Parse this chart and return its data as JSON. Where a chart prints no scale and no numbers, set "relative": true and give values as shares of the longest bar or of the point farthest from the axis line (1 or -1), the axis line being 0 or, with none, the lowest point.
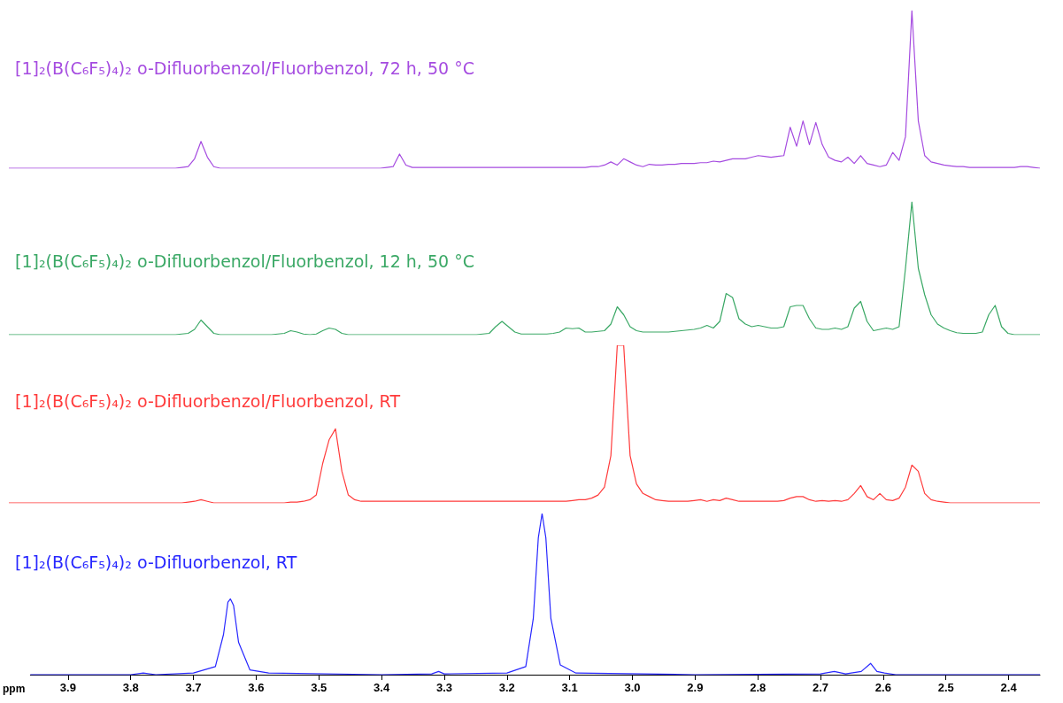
{
  "chart_data": [
    {
      "type": "line",
      "title": "[1]₂(B(C₆F₅)₄)₂ o-Difluorbenzol/Fluorbenzol, 72 h, 50 °C",
      "relative": true,
      "tick_labels": false,
      "categories": [
        null,
        null,
        null,
        null,
        null,
        null,
        null,
        null,
        null,
        null,
        null,
        null,
        null,
        null,
        null,
        null,
        null,
        null,
        null,
        null,
        null,
        null,
        null,
        null,
        null,
        null,
        null,
        null,
        null,
        null,
        null,
        null,
        null,
        null,
        null,
        null,
        null,
        null,
        null,
        null,
        null,
        null,
        null,
        null,
        null,
        null,
        null,
        null,
        null,
        null,
        null,
        null,
        null,
        null,
        null,
        null,
        null,
        null,
        null,
        null,
        null,
        null,
        null,
        null,
        null,
        null,
        null,
        null,
        null,
        null,
        null,
        null,
        null,
        null,
        null,
        null,
        null,
        null,
        null,
        null,
        null,
        null,
        null,
        null,
        null,
        null,
        null,
        null,
        null,
        null,
        null,
        null,
        null,
        null,
        null,
        null,
        null,
        null,
        null,
        null,
        null,
        null,
        null,
        null,
        null,
        null,
        null,
        null,
        null,
        null,
        null,
        null,
        null,
        null,
        null,
        null,
        null,
        null,
        null,
        null,
        null,
        null,
        null,
        null,
        null,
        null,
        null,
        null,
        null,
        null,
        null,
        null,
        null,
        null,
        null,
        null,
        null,
        null,
        null,
        null,
        null,
        null,
        null,
        null,
        null,
        null,
        null,
        null,
        null,
        null,
        null,
        null,
        null,
        null,
        null,
        null,
        null,
        null,
        null,
        null,
        null,
        null
      ],
      "series": [
        {
          "color": "#a54be0",
          "values": [
            0,
            0,
            0,
            0,
            0,
            0,
            0,
            0,
            0,
            0,
            0,
            0,
            0,
            0,
            0,
            0,
            0,
            0,
            0,
            0,
            0,
            0,
            0,
            0,
            0,
            0,
            0,
            0.005,
            0.01,
            0.06,
            0.17,
            0.07,
            0.01,
            0,
            0,
            0,
            0,
            0,
            0,
            0,
            0,
            0,
            0,
            0,
            0,
            0,
            0,
            0,
            0,
            0,
            0,
            0,
            0,
            0,
            0,
            0,
            0,
            0,
            0,
            0.005,
            0.01,
            0.09,
            0.02,
            0.005,
            0.005,
            0.005,
            0.005,
            0.005,
            0.005,
            0.005,
            0.005,
            0.005,
            0.005,
            0.005,
            0.005,
            0.005,
            0.005,
            0.005,
            0.005,
            0.005,
            0.005,
            0.005,
            0.005,
            0.005,
            0.005,
            0.005,
            0.005,
            0.005,
            0.005,
            0.005,
            0.005,
            0.01,
            0.01,
            0.02,
            0.04,
            0.02,
            0.06,
            0.04,
            0.02,
            0.01,
            0.025,
            0.02,
            0.02,
            0.025,
            0.025,
            0.03,
            0.03,
            0.03,
            0.035,
            0.035,
            0.045,
            0.04,
            0.05,
            0.06,
            0.06,
            0.06,
            0.07,
            0.08,
            0.075,
            0.07,
            0.075,
            0.08,
            0.26,
            0.14,
            0.3,
            0.15,
            0.29,
            0.15,
            0.07,
            0.05,
            0.04,
            0.07,
            0.03,
            0.08,
            0.03,
            0.02,
            0.01,
            0.02,
            0.1,
            0.05,
            0.2,
            1,
            0.3,
            0.08,
            0.04,
            0.03,
            0.02,
            0.015,
            0.01,
            0.01,
            0.005,
            0.005,
            0.005,
            0.005,
            0.005,
            0.005,
            0.005,
            0.005,
            0.01,
            0.01,
            0.005,
            0
          ]
        }
      ]
    },
    {
      "type": "line",
      "title": "[1]₂(B(C₆F₅)₄)₂ o-Difluorbenzol/Fluorbenzol, 12 h, 50 °C",
      "relative": true,
      "tick_labels": false,
      "categories": [
        null,
        null,
        null,
        null,
        null,
        null,
        null,
        null,
        null,
        null,
        null,
        null,
        null,
        null,
        null,
        null,
        null,
        null,
        null,
        null,
        null,
        null,
        null,
        null,
        null,
        null,
        null,
        null,
        null,
        null,
        null,
        null,
        null,
        null,
        null,
        null,
        null,
        null,
        null,
        null,
        null,
        null,
        null,
        null,
        null,
        null,
        null,
        null,
        null,
        null,
        null,
        null,
        null,
        null,
        null,
        null,
        null,
        null,
        null,
        null,
        null,
        null,
        null,
        null,
        null,
        null,
        null,
        null,
        null,
        null,
        null,
        null,
        null,
        null,
        null,
        null,
        null,
        null,
        null,
        null,
        null,
        null,
        null,
        null,
        null,
        null,
        null,
        null,
        null,
        null,
        null,
        null,
        null,
        null,
        null,
        null,
        null,
        null,
        null,
        null,
        null,
        null,
        null,
        null,
        null,
        null,
        null,
        null,
        null,
        null,
        null,
        null,
        null,
        null,
        null,
        null,
        null,
        null,
        null,
        null,
        null,
        null,
        null,
        null,
        null,
        null,
        null,
        null,
        null,
        null,
        null,
        null,
        null,
        null,
        null,
        null,
        null,
        null,
        null,
        null,
        null,
        null,
        null,
        null,
        null,
        null,
        null,
        null,
        null,
        null,
        null,
        null,
        null,
        null,
        null,
        null,
        null,
        null,
        null,
        null,
        null,
        null
      ],
      "series": [
        {
          "color": "#3aa865",
          "values": [
            0,
            0,
            0,
            0,
            0,
            0,
            0,
            0,
            0,
            0,
            0,
            0,
            0,
            0,
            0,
            0,
            0,
            0,
            0,
            0,
            0,
            0,
            0,
            0,
            0,
            0,
            0,
            0.005,
            0.01,
            0.04,
            0.11,
            0.06,
            0.01,
            0,
            0,
            0,
            0,
            0,
            0,
            0,
            0,
            0,
            0.005,
            0.01,
            0.03,
            0.02,
            0.005,
            0,
            0.005,
            0.03,
            0.05,
            0.04,
            0.01,
            0,
            0,
            0,
            0,
            0,
            0,
            0,
            0,
            0,
            0,
            0,
            0,
            0,
            0,
            0,
            0,
            0,
            0,
            0,
            0,
            0,
            0.005,
            0.01,
            0.06,
            0.1,
            0.06,
            0.02,
            0.005,
            0.005,
            0.005,
            0.005,
            0.005,
            0.01,
            0.02,
            0.05,
            0.045,
            0.05,
            0.02,
            0.02,
            0.025,
            0.03,
            0.08,
            0.21,
            0.15,
            0.06,
            0.03,
            0.02,
            0.02,
            0.02,
            0.02,
            0.02,
            0.025,
            0.03,
            0.035,
            0.04,
            0.05,
            0.07,
            0.05,
            0.1,
            0.31,
            0.28,
            0.12,
            0.08,
            0.06,
            0.07,
            0.06,
            0.05,
            0.05,
            0.06,
            0.21,
            0.22,
            0.22,
            0.12,
            0.05,
            0.04,
            0.04,
            0.05,
            0.04,
            0.06,
            0.2,
            0.25,
            0.1,
            0.03,
            0.04,
            0.05,
            0.04,
            0.06,
            0.5,
            1,
            0.5,
            0.3,
            0.15,
            0.08,
            0.05,
            0.03,
            0.015,
            0.01,
            0.01,
            0.01,
            0.02,
            0.15,
            0.22,
            0.06,
            0.01,
            0,
            0,
            0,
            0,
            0
          ]
        }
      ]
    },
    {
      "type": "line",
      "title": "[1]₂(B(C₆F₅)₄)₂ o-Difluorbenzol/Fluorbenzol, RT",
      "relative": true,
      "tick_labels": false,
      "categories": [
        null,
        null,
        null,
        null,
        null,
        null,
        null,
        null,
        null,
        null,
        null,
        null,
        null,
        null,
        null,
        null,
        null,
        null,
        null,
        null,
        null,
        null,
        null,
        null,
        null,
        null,
        null,
        null,
        null,
        null,
        null,
        null,
        null,
        null,
        null,
        null,
        null,
        null,
        null,
        null,
        null,
        null,
        null,
        null,
        null,
        null,
        null,
        null,
        null,
        null,
        null,
        null,
        null,
        null,
        null,
        null,
        null,
        null,
        null,
        null,
        null,
        null,
        null,
        null,
        null,
        null,
        null,
        null,
        null,
        null,
        null,
        null,
        null,
        null,
        null,
        null,
        null,
        null,
        null,
        null,
        null,
        null,
        null,
        null,
        null,
        null,
        null,
        null,
        null,
        null,
        null,
        null,
        null,
        null,
        null,
        null,
        null,
        null,
        null,
        null,
        null,
        null,
        null,
        null,
        null,
        null,
        null,
        null,
        null,
        null,
        null,
        null,
        null,
        null,
        null,
        null,
        null,
        null,
        null,
        null,
        null,
        null,
        null,
        null,
        null,
        null,
        null,
        null,
        null,
        null,
        null,
        null,
        null,
        null,
        null,
        null,
        null,
        null,
        null,
        null,
        null,
        null,
        null,
        null,
        null,
        null,
        null,
        null,
        null,
        null,
        null,
        null,
        null,
        null,
        null,
        null,
        null,
        null,
        null,
        null,
        null,
        null
      ],
      "series": [
        {
          "color": "#ff3b3b",
          "values": [
            0,
            0,
            0,
            0,
            0,
            0,
            0,
            0,
            0,
            0,
            0,
            0,
            0,
            0,
            0,
            0,
            0,
            0,
            0,
            0,
            0,
            0,
            0,
            0,
            0,
            0,
            0,
            0,
            0.005,
            0.01,
            0.02,
            0.01,
            0,
            0,
            0,
            0,
            0,
            0,
            0,
            0,
            0,
            0,
            0,
            0,
            0.005,
            0.005,
            0.01,
            0.02,
            0.05,
            0.25,
            0.4,
            0.47,
            0.2,
            0.05,
            0.02,
            0.01,
            0.01,
            0.01,
            0.01,
            0.01,
            0.01,
            0.01,
            0.01,
            0.01,
            0.01,
            0.01,
            0.01,
            0.01,
            0.01,
            0.01,
            0.01,
            0.01,
            0.01,
            0.01,
            0.01,
            0.01,
            0.01,
            0.01,
            0.01,
            0.01,
            0.01,
            0.01,
            0.01,
            0.01,
            0.01,
            0.01,
            0.01,
            0.01,
            0.015,
            0.02,
            0.02,
            0.03,
            0.05,
            0.1,
            0.3,
            1,
            1,
            0.3,
            0.12,
            0.06,
            0.04,
            0.02,
            0.015,
            0.01,
            0.01,
            0.01,
            0.01,
            0.015,
            0.02,
            0.01,
            0.02,
            0.015,
            0.03,
            0.02,
            0.01,
            0.01,
            0.01,
            0.01,
            0.01,
            0.01,
            0.01,
            0.015,
            0.03,
            0.04,
            0.04,
            0.02,
            0.01,
            0.015,
            0.01,
            0.015,
            0.01,
            0.02,
            0.06,
            0.11,
            0.04,
            0.02,
            0.06,
            0.02,
            0.015,
            0.03,
            0.1,
            0.24,
            0.2,
            0.06,
            0.02,
            0.01,
            0.005,
            0,
            0,
            0,
            0,
            0,
            0,
            0,
            0,
            0,
            0,
            0,
            0,
            0,
            0,
            0
          ]
        }
      ]
    },
    {
      "type": "line",
      "title": "[1]₂(B(C₆F₅)₄)₂ o-Difluorbenzol, RT",
      "relative": true,
      "xlim": [
        3.96,
        2.35
      ],
      "tick_labels": "x",
      "xlabel": "ppm",
      "xticks": [
        3.9,
        3.8,
        3.7,
        3.6,
        3.5,
        3.4,
        3.3,
        3.2,
        3.1,
        {
          "value": 3,
          "label": "3.0"
        },
        2.9,
        2.8,
        2.7,
        2.6,
        2.5,
        2.4
      ],
      "x": [
        3.96,
        3.8,
        3.78,
        3.76,
        3.7,
        3.665,
        3.652,
        3.645,
        3.641,
        3.636,
        3.628,
        3.61,
        3.58,
        3.4,
        3.32,
        3.309,
        3.3,
        3.2,
        3.17,
        3.158,
        3.15,
        3.144,
        3.138,
        3.13,
        3.115,
        3.09,
        2.9,
        2.7,
        2.678,
        2.66,
        2.635,
        2.62,
        2.61,
        2.598,
        2.58,
        2.35
      ],
      "series": [
        {
          "color": "#2727ff",
          "values": [
            0,
            0,
            0.01,
            0,
            0.01,
            0.05,
            0.25,
            0.45,
            0.47,
            0.43,
            0.2,
            0.03,
            0.01,
            0,
            0.005,
            0.02,
            0.005,
            0.01,
            0.05,
            0.35,
            0.85,
            1,
            0.85,
            0.35,
            0.06,
            0.01,
            0,
            0.005,
            0.02,
            0.005,
            0.02,
            0.07,
            0.02,
            0.01,
            0,
            0
          ]
        }
      ]
    }
  ]
}
